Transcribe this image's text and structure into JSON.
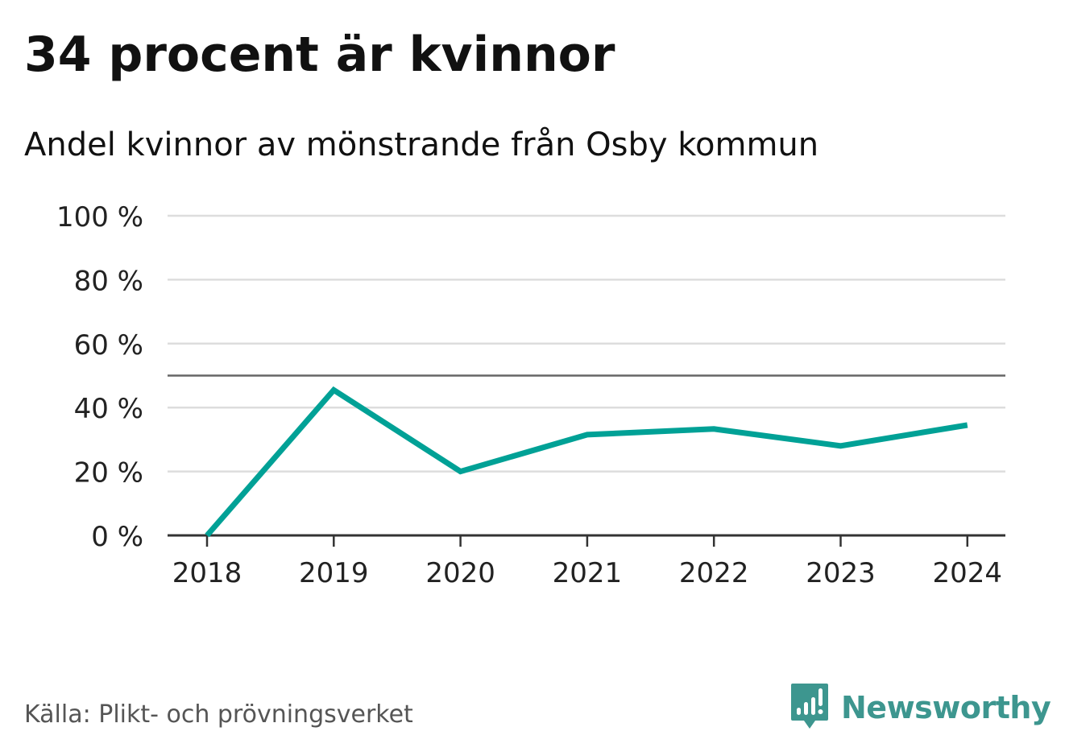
{
  "chart_data": {
    "type": "line",
    "title": "34 procent är kvinnor",
    "subtitle": "Andel kvinnor av mönstrande från Osby kommun",
    "categories": [
      "2018",
      "2019",
      "2020",
      "2021",
      "2022",
      "2023",
      "2024"
    ],
    "series": [
      {
        "values": [
          0,
          45.5,
          20,
          31.5,
          33.3,
          28,
          34.5
        ],
        "color": "#00a196"
      }
    ],
    "y_ticks": [
      "0 %",
      "20 %",
      "40 %",
      "60 %",
      "80 %",
      "100 %"
    ],
    "ylim": [
      0,
      100
    ],
    "reference_line": 50,
    "grid": true,
    "source": "Källa: Plikt- och prövningsverket"
  },
  "brand": {
    "name": "Newsworthy",
    "icon": "newsworthy-logo-icon",
    "color": "#3d968f"
  },
  "colors": {
    "line": "#00a196",
    "grid": "#dddddd",
    "axis": "#333333",
    "reference": "#666666"
  }
}
